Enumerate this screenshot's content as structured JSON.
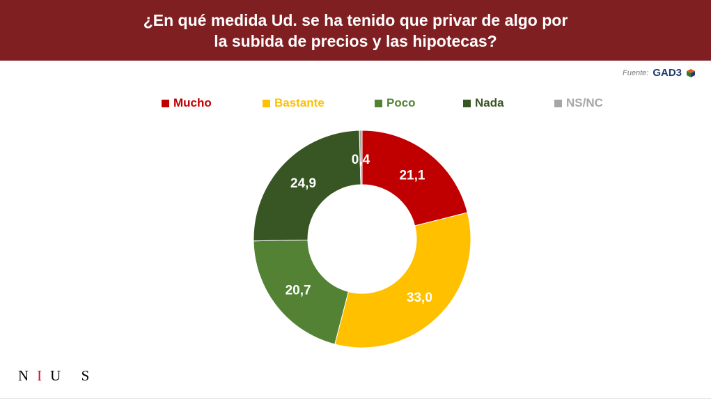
{
  "header": {
    "line1": "¿En qué medida Ud. se ha tenido que privar de algo por",
    "line2": "la subida de precios y las hipotecas?"
  },
  "source": {
    "label": "Fuente:",
    "logo": "GAD3"
  },
  "brand": {
    "n": "N",
    "i": "I",
    "us": "U S"
  },
  "chart_data": {
    "type": "pie",
    "donut": true,
    "legend_position": "top",
    "categories": [
      "Mucho",
      "Bastante",
      "Poco",
      "Nada",
      "NS/NC"
    ],
    "values": [
      21.1,
      33.0,
      20.7,
      24.9,
      0.4
    ],
    "labels": [
      "21,1",
      "33,0",
      "20,7",
      "24,9",
      "0,4"
    ],
    "colors": [
      "#c00000",
      "#ffc000",
      "#548235",
      "#375623",
      "#a6a6a6"
    ]
  }
}
